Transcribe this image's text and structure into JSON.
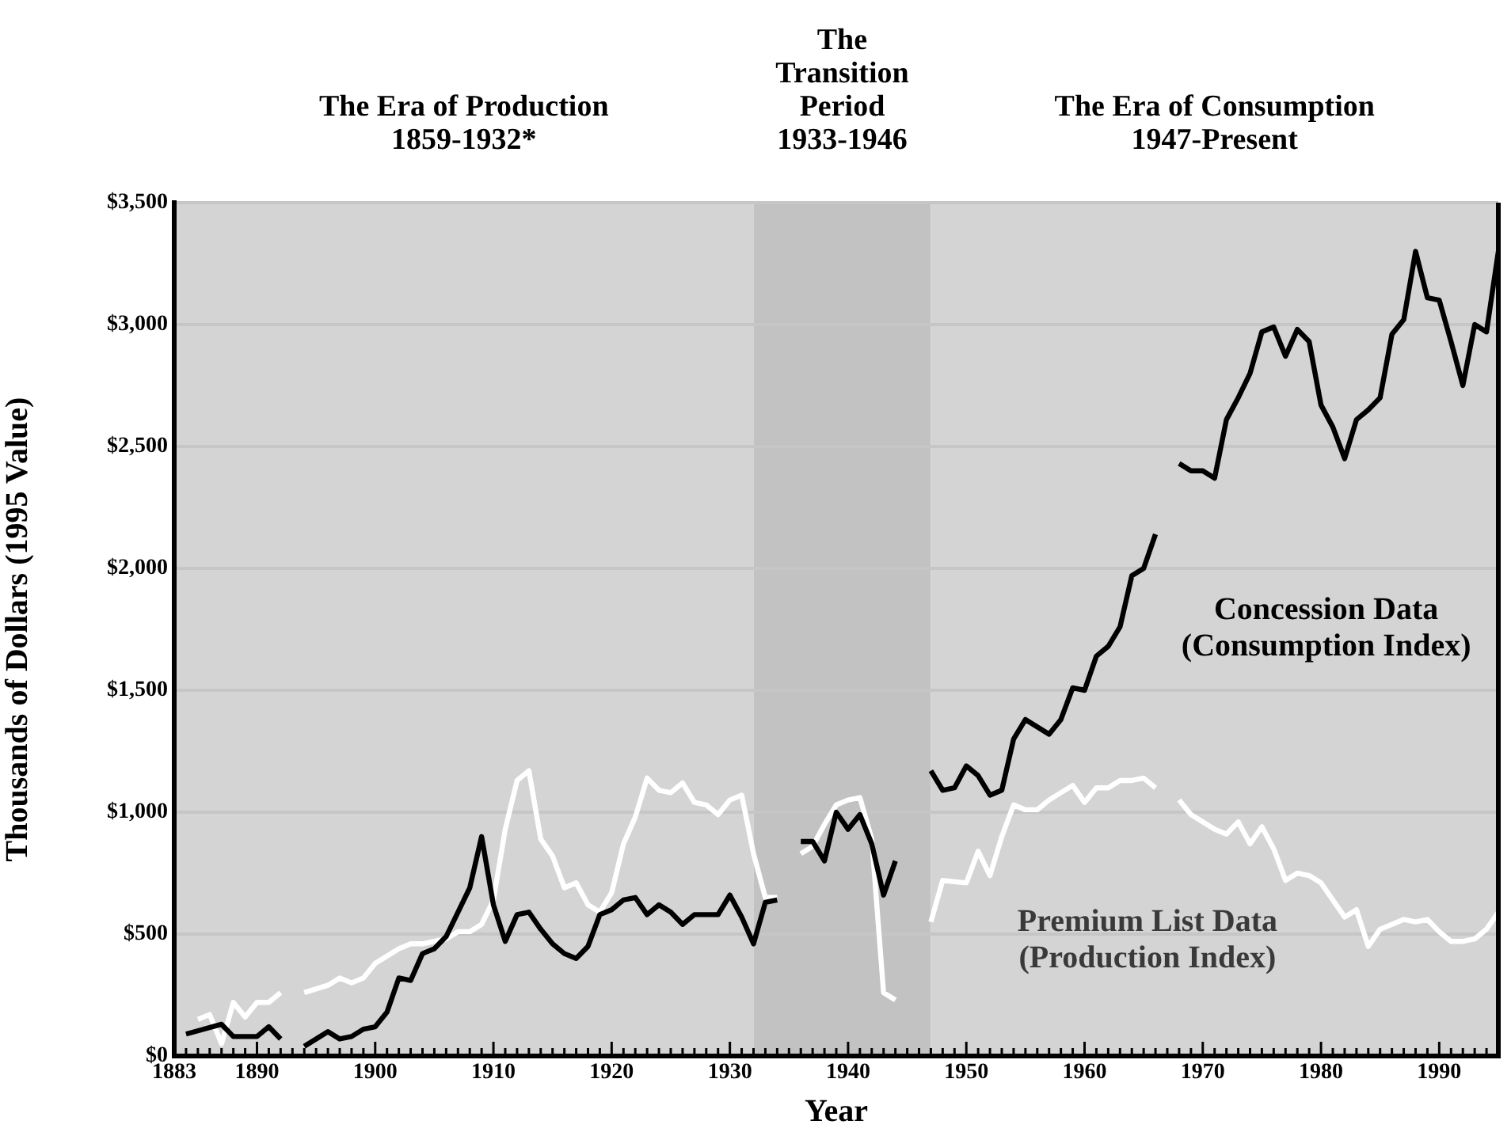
{
  "chart_data": {
    "type": "line",
    "xlabel": "Year",
    "ylabel": "Thousands of Dollars (1995 Value)",
    "xlim": [
      1883,
      1995
    ],
    "ylim": [
      0,
      3500
    ],
    "xticks": [
      1883,
      {
        "value": 1884,
        "label": null
      },
      {
        "value": 1885,
        "label": null
      },
      {
        "value": 1886,
        "label": null
      },
      {
        "value": 1887,
        "label": null
      },
      {
        "value": 1888,
        "label": null
      },
      {
        "value": 1889,
        "label": null
      },
      1890,
      {
        "value": 1891,
        "label": null
      },
      {
        "value": 1892,
        "label": null
      },
      {
        "value": 1893,
        "label": null
      },
      {
        "value": 1894,
        "label": null
      },
      {
        "value": 1895,
        "label": null
      },
      {
        "value": 1896,
        "label": null
      },
      {
        "value": 1897,
        "label": null
      },
      {
        "value": 1898,
        "label": null
      },
      {
        "value": 1899,
        "label": null
      },
      1900,
      {
        "value": 1901,
        "label": null
      },
      {
        "value": 1902,
        "label": null
      },
      {
        "value": 1903,
        "label": null
      },
      {
        "value": 1904,
        "label": null
      },
      {
        "value": 1905,
        "label": null
      },
      {
        "value": 1906,
        "label": null
      },
      {
        "value": 1907,
        "label": null
      },
      {
        "value": 1908,
        "label": null
      },
      {
        "value": 1909,
        "label": null
      },
      1910,
      {
        "value": 1911,
        "label": null
      },
      {
        "value": 1912,
        "label": null
      },
      {
        "value": 1913,
        "label": null
      },
      {
        "value": 1914,
        "label": null
      },
      {
        "value": 1915,
        "label": null
      },
      {
        "value": 1916,
        "label": null
      },
      {
        "value": 1917,
        "label": null
      },
      {
        "value": 1918,
        "label": null
      },
      {
        "value": 1919,
        "label": null
      },
      1920,
      {
        "value": 1921,
        "label": null
      },
      {
        "value": 1922,
        "label": null
      },
      {
        "value": 1923,
        "label": null
      },
      {
        "value": 1924,
        "label": null
      },
      {
        "value": 1925,
        "label": null
      },
      {
        "value": 1926,
        "label": null
      },
      {
        "value": 1927,
        "label": null
      },
      {
        "value": 1928,
        "label": null
      },
      {
        "value": 1929,
        "label": null
      },
      1930,
      {
        "value": 1931,
        "label": null
      },
      {
        "value": 1932,
        "label": null
      },
      {
        "value": 1933,
        "label": null
      },
      {
        "value": 1934,
        "label": null
      },
      {
        "value": 1935,
        "label": null
      },
      {
        "value": 1936,
        "label": null
      },
      {
        "value": 1937,
        "label": null
      },
      {
        "value": 1938,
        "label": null
      },
      {
        "value": 1939,
        "label": null
      },
      1940,
      {
        "value": 1941,
        "label": null
      },
      {
        "value": 1942,
        "label": null
      },
      {
        "value": 1943,
        "label": null
      },
      {
        "value": 1944,
        "label": null
      },
      {
        "value": 1945,
        "label": null
      },
      {
        "value": 1946,
        "label": null
      },
      {
        "value": 1947,
        "label": null
      },
      {
        "value": 1948,
        "label": null
      },
      {
        "value": 1949,
        "label": null
      },
      1950,
      {
        "value": 1951,
        "label": null
      },
      {
        "value": 1952,
        "label": null
      },
      {
        "value": 1953,
        "label": null
      },
      {
        "value": 1954,
        "label": null
      },
      {
        "value": 1955,
        "label": null
      },
      {
        "value": 1956,
        "label": null
      },
      {
        "value": 1957,
        "label": null
      },
      {
        "value": 1958,
        "label": null
      },
      {
        "value": 1959,
        "label": null
      },
      1960,
      {
        "value": 1961,
        "label": null
      },
      {
        "value": 1962,
        "label": null
      },
      {
        "value": 1963,
        "label": null
      },
      {
        "value": 1964,
        "label": null
      },
      {
        "value": 1965,
        "label": null
      },
      {
        "value": 1966,
        "label": null
      },
      {
        "value": 1967,
        "label": null
      },
      {
        "value": 1968,
        "label": null
      },
      {
        "value": 1969,
        "label": null
      },
      1970,
      {
        "value": 1971,
        "label": null
      },
      {
        "value": 1972,
        "label": null
      },
      {
        "value": 1973,
        "label": null
      },
      {
        "value": 1974,
        "label": null
      },
      {
        "value": 1975,
        "label": null
      },
      {
        "value": 1976,
        "label": null
      },
      {
        "value": 1977,
        "label": null
      },
      {
        "value": 1978,
        "label": null
      },
      {
        "value": 1979,
        "label": null
      },
      1980,
      {
        "value": 1981,
        "label": null
      },
      {
        "value": 1982,
        "label": null
      },
      {
        "value": 1983,
        "label": null
      },
      {
        "value": 1984,
        "label": null
      },
      {
        "value": 1985,
        "label": null
      },
      {
        "value": 1986,
        "label": null
      },
      {
        "value": 1987,
        "label": null
      },
      {
        "value": 1988,
        "label": null
      },
      {
        "value": 1989,
        "label": null
      },
      1990,
      {
        "value": 1991,
        "label": null
      },
      {
        "value": 1992,
        "label": null
      },
      {
        "value": 1993,
        "label": null
      },
      {
        "value": 1994,
        "label": null
      },
      {
        "value": 1995,
        "label": null
      }
    ],
    "yticks": [
      {
        "value": 0,
        "label": "$0"
      },
      {
        "value": 500,
        "label": "$500"
      },
      {
        "value": 1000,
        "label": "$1,000"
      },
      {
        "value": 1500,
        "label": "$1,500"
      },
      {
        "value": 2000,
        "label": "$2,000"
      },
      {
        "value": 2500,
        "label": "$2,500"
      },
      {
        "value": 3000,
        "label": "$3,000"
      },
      {
        "value": 3500,
        "label": "$3,500"
      }
    ],
    "grid": "y",
    "legend": false,
    "marker": "none",
    "line_style": "solid",
    "bands": [
      {
        "axis": "x",
        "from": 1883,
        "to": 1932,
        "label": "The Era of Production 1859-1932*",
        "color": "#d4d4d4"
      },
      {
        "axis": "x",
        "from": 1932,
        "to": 1947,
        "label": "The Transition Period 1933-1946",
        "color": "#c2c2c2"
      },
      {
        "axis": "x",
        "from": 1947,
        "to": 1995,
        "label": "The Era of Consumption 1947-Present",
        "color": "#d4d4d4"
      }
    ],
    "series": [
      {
        "name": "Concession Data (Consumption Index)",
        "color": "#000000",
        "x": [
          1884,
          1887,
          1888,
          1890,
          1891,
          1892,
          1893,
          1894,
          1896,
          1897,
          1898,
          1899,
          1900,
          1901,
          1902,
          1903,
          1904,
          1905,
          1906,
          1907,
          1908,
          1909,
          1910,
          1911,
          1912,
          1913,
          1914,
          1915,
          1916,
          1917,
          1918,
          1919,
          1920,
          1921,
          1922,
          1923,
          1924,
          1925,
          1926,
          1927,
          1928,
          1929,
          1930,
          1931,
          1932,
          1933,
          1934,
          1935,
          1936,
          1937,
          1938,
          1939,
          1940,
          1941,
          1942,
          1943,
          1944,
          1945,
          1947,
          1948,
          1949,
          1950,
          1951,
          1952,
          1953,
          1954,
          1955,
          1956,
          1957,
          1958,
          1959,
          1960,
          1961,
          1962,
          1963,
          1964,
          1965,
          1966,
          1967,
          1968,
          1969,
          1970,
          1971,
          1972,
          1973,
          1974,
          1975,
          1976,
          1977,
          1978,
          1979,
          1980,
          1981,
          1982,
          1983,
          1984,
          1985,
          1986,
          1987,
          1988,
          1989,
          1990,
          1991,
          1992,
          1993,
          1994,
          1995
        ],
        "values": [
          90,
          130,
          80,
          80,
          120,
          70,
          null,
          40,
          100,
          70,
          80,
          110,
          120,
          180,
          320,
          310,
          420,
          440,
          490,
          590,
          690,
          900,
          620,
          470,
          580,
          590,
          520,
          460,
          420,
          400,
          450,
          580,
          600,
          640,
          650,
          580,
          620,
          590,
          540,
          580,
          580,
          580,
          660,
          570,
          460,
          630,
          640,
          null,
          880,
          880,
          800,
          1000,
          930,
          990,
          870,
          660,
          800,
          null,
          1170,
          1090,
          1100,
          1190,
          1150,
          1070,
          1090,
          1300,
          1380,
          1350,
          1320,
          1380,
          1510,
          1500,
          1640,
          1680,
          1760,
          1970,
          2000,
          2140,
          null,
          2430,
          2400,
          2400,
          2370,
          2610,
          2700,
          2800,
          2970,
          2990,
          2870,
          2980,
          2930,
          2670,
          2580,
          2450,
          2610,
          2650,
          2700,
          2960,
          3020,
          3300,
          3110,
          3100,
          2930,
          2750,
          3000,
          2970,
          3300
        ]
      },
      {
        "name": "Premium List Data (Production Index)",
        "color": "#ffffff",
        "x": [
          1885,
          1886,
          1887,
          1888,
          1889,
          1890,
          1891,
          1892,
          1893,
          1894,
          1896,
          1897,
          1898,
          1899,
          1900,
          1901,
          1902,
          1903,
          1904,
          1905,
          1906,
          1907,
          1908,
          1909,
          1910,
          1911,
          1912,
          1913,
          1914,
          1915,
          1916,
          1917,
          1918,
          1919,
          1920,
          1921,
          1922,
          1923,
          1924,
          1925,
          1926,
          1927,
          1928,
          1929,
          1930,
          1931,
          1932,
          1933,
          1934,
          1935,
          1936,
          1937,
          1938,
          1939,
          1940,
          1941,
          1942,
          1943,
          1944,
          1945,
          1947,
          1948,
          1950,
          1951,
          1952,
          1953,
          1954,
          1955,
          1956,
          1957,
          1958,
          1959,
          1960,
          1961,
          1962,
          1963,
          1964,
          1965,
          1966,
          1967,
          1968,
          1969,
          1970,
          1971,
          1972,
          1973,
          1974,
          1975,
          1976,
          1977,
          1978,
          1979,
          1980,
          1981,
          1982,
          1983,
          1984,
          1985,
          1986,
          1987,
          1988,
          1989,
          1990,
          1991,
          1992,
          1993,
          1994,
          1995
        ],
        "values": [
          150,
          170,
          50,
          220,
          160,
          220,
          220,
          260,
          null,
          260,
          290,
          320,
          300,
          320,
          380,
          410,
          440,
          460,
          460,
          470,
          480,
          510,
          510,
          540,
          640,
          930,
          1130,
          1170,
          890,
          820,
          690,
          710,
          620,
          590,
          670,
          870,
          980,
          1140,
          1090,
          1080,
          1120,
          1040,
          1030,
          990,
          1050,
          1070,
          830,
          650,
          650,
          null,
          830,
          860,
          950,
          1030,
          1050,
          1060,
          890,
          260,
          230,
          null,
          550,
          720,
          710,
          840,
          740,
          900,
          1030,
          1010,
          1010,
          1050,
          1080,
          1110,
          1040,
          1100,
          1100,
          1130,
          1130,
          1140,
          1100,
          null,
          1050,
          990,
          960,
          930,
          910,
          960,
          870,
          940,
          850,
          720,
          750,
          740,
          710,
          640,
          570,
          600,
          450,
          520,
          540,
          560,
          550,
          560,
          510,
          470,
          470,
          480,
          520,
          590
        ]
      }
    ]
  }
}
